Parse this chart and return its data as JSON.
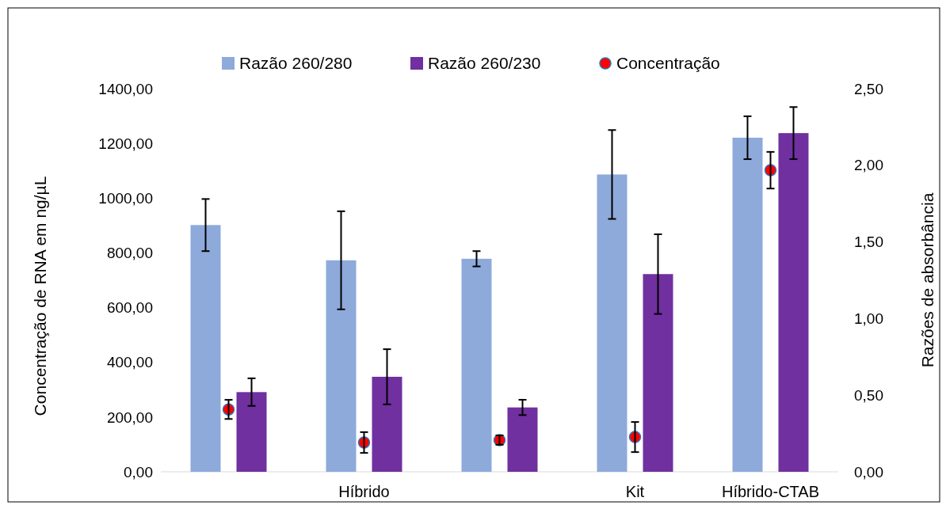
{
  "chart_data": {
    "type": "bar",
    "categories": [
      null,
      "Híbrido",
      null,
      "Kit",
      "Híbrido-CTAB"
    ],
    "ylabel": "Concentração de RNA em ng/µL",
    "y2label": "Razões de absorbância",
    "ylim": [
      0,
      1400
    ],
    "yticks": [
      {
        "value": 0,
        "label": "0,00"
      },
      {
        "value": 200,
        "label": "200,00"
      },
      {
        "value": 400,
        "label": "400,00"
      },
      {
        "value": 600,
        "label": "600,00"
      },
      {
        "value": 800,
        "label": "800,00"
      },
      {
        "value": 1000,
        "label": "1000,00"
      },
      {
        "value": 1200,
        "label": "1200,00"
      },
      {
        "value": 1400,
        "label": "1400,00"
      }
    ],
    "y2lim": [
      0,
      2.5
    ],
    "y2ticks": [
      {
        "value": 0,
        "label": "0,00"
      },
      {
        "value": 0.5,
        "label": "0,50"
      },
      {
        "value": 1,
        "label": "1,00"
      },
      {
        "value": 1.5,
        "label": "1,50"
      },
      {
        "value": 2,
        "label": "2,00"
      },
      {
        "value": 2.5,
        "label": "2,50"
      }
    ],
    "legend": "top",
    "grid": false,
    "marker": "circle",
    "series": [
      {
        "name": "Razão 260/280",
        "axis": "y2",
        "color": "#8eaadb",
        "values": [
          1.61,
          1.38,
          1.39,
          1.94,
          2.18
        ],
        "errors": [
          0.17,
          0.32,
          0.05,
          0.29,
          0.14
        ]
      },
      {
        "name": "Razão 260/230",
        "axis": "y2",
        "color": "#7030a0",
        "values": [
          0.52,
          0.62,
          0.42,
          1.29,
          2.21
        ],
        "errors": [
          0.09,
          0.18,
          0.05,
          0.26,
          0.17
        ]
      },
      {
        "name": "Concentração",
        "type": "scatter",
        "axis": "y",
        "color": "#ff0000",
        "values": [
          228,
          107,
          116,
          127,
          1102
        ],
        "errors": [
          35,
          38,
          17,
          55,
          67
        ]
      }
    ]
  }
}
